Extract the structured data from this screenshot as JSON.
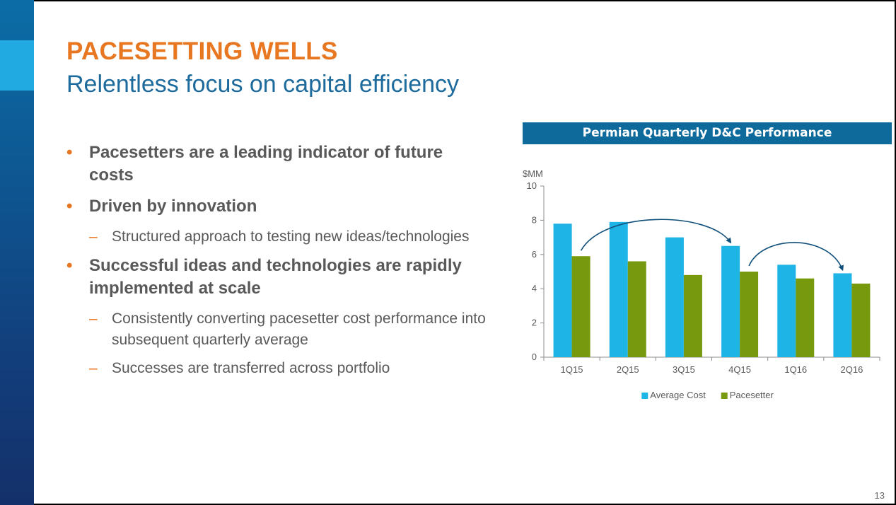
{
  "slide": {
    "title": "PACESETTING WELLS",
    "subtitle": "Relentless focus on capital efficiency",
    "page_number": "13",
    "colors": {
      "title": "#e87722",
      "subtitle": "#1d6b9d",
      "bullet_text": "#595959",
      "bullet_marker": "#e87722",
      "side_band": "#0d5a95",
      "side_accent": "#21a9e1",
      "chart_header": "#0f6a9c"
    }
  },
  "bullets": [
    {
      "level": 1,
      "marker": "•",
      "text": "Pacesetters are a leading indicator of future costs"
    },
    {
      "level": 1,
      "marker": "•",
      "text": "Driven by innovation"
    },
    {
      "level": 2,
      "marker": "–",
      "text": "Structured approach to testing new ideas/technologies"
    },
    {
      "level": 1,
      "marker": "•",
      "text": "Successful ideas and technologies are rapidly implemented at scale"
    },
    {
      "level": 2,
      "marker": "–",
      "text": "Consistently converting pacesetter cost performance into subsequent quarterly average"
    },
    {
      "level": 2,
      "marker": "–",
      "text": "Successes are transferred across portfolio"
    }
  ],
  "chart_data": {
    "type": "bar",
    "title": "Permian Quarterly D&C Performance",
    "ylabel": "$MM",
    "xlabel": "",
    "categories": [
      "1Q15",
      "2Q15",
      "3Q15",
      "4Q15",
      "1Q16",
      "2Q16"
    ],
    "series": [
      {
        "name": "Average Cost",
        "color": "#1fb4e6",
        "values": [
          7.8,
          7.9,
          7.0,
          6.5,
          5.4,
          4.9
        ]
      },
      {
        "name": "Pacesetter",
        "color": "#76990e",
        "values": [
          5.9,
          5.6,
          4.8,
          5.0,
          4.6,
          4.3
        ]
      }
    ],
    "ylim": [
      0,
      10
    ],
    "yticks": [
      0,
      2,
      4,
      6,
      8,
      10
    ],
    "grid": false,
    "legend": "bottom",
    "annotations": [
      {
        "type": "curved-arrow",
        "from_category": "1Q15",
        "from_series": "Pacesetter",
        "to_category": "4Q15",
        "to_series": "Average Cost",
        "color": "#0f4f7a"
      },
      {
        "type": "curved-arrow",
        "from_category": "4Q15",
        "from_series": "Pacesetter",
        "to_category": "2Q16",
        "to_series": "Average Cost",
        "color": "#0f4f7a"
      }
    ]
  }
}
